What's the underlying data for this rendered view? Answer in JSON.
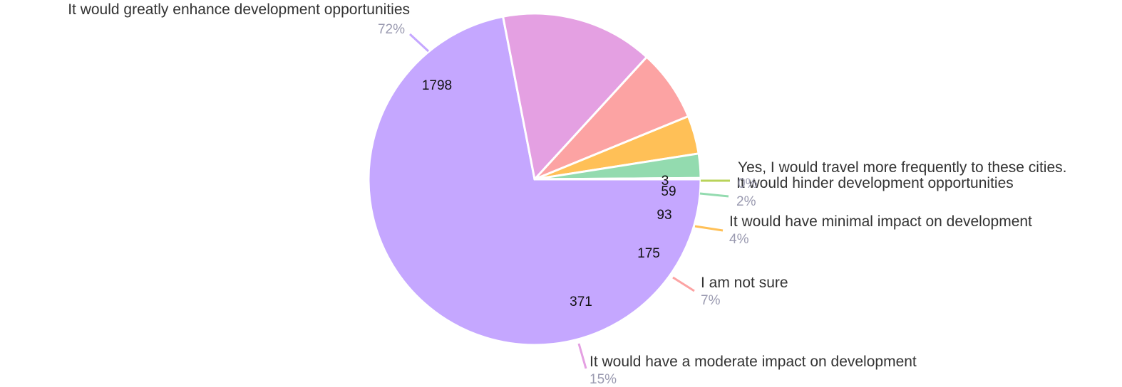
{
  "chart_data": {
    "type": "pie",
    "title": "",
    "slices": [
      {
        "label": "It would greatly enhance development opportunities",
        "value": 1798,
        "percent": "72%",
        "color": "#c5a7ff"
      },
      {
        "label": "It would have a moderate impact on development",
        "value": 371,
        "percent": "15%",
        "color": "#e4a0e2"
      },
      {
        "label": "I am not sure",
        "value": 175,
        "percent": "7%",
        "color": "#fca3a3"
      },
      {
        "label": "It would have minimal impact on development",
        "value": 93,
        "percent": "4%",
        "color": "#ffc057"
      },
      {
        "label": "It would hinder development opportunities",
        "value": 59,
        "percent": "2%",
        "color": "#93dbaf"
      },
      {
        "label": "Yes, I would travel more frequently to these cities.",
        "value": 3,
        "percent": "0%",
        "color": "#b9d35a"
      }
    ],
    "start_angle_deg": 0,
    "direction": "clockwise",
    "legend": "none",
    "data_labels": "inside values, outside category and percent"
  }
}
